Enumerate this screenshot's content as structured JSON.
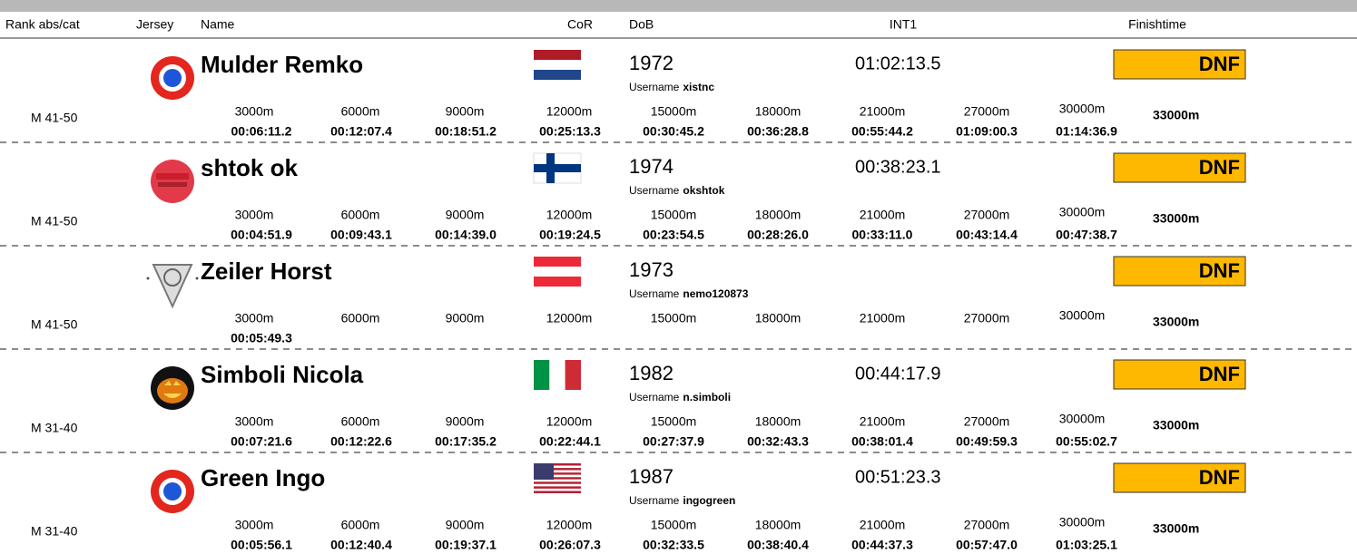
{
  "header": {
    "columns": [
      "Rank abs/cat",
      "Jersey",
      "Name",
      "CoR",
      "DoB",
      "INT1",
      "Finishtime"
    ]
  },
  "username_label": "Username",
  "split_distances": [
    "3000m",
    "6000m",
    "9000m",
    "12000m",
    "15000m",
    "18000m",
    "21000m",
    "27000m",
    "30000m",
    "33000m"
  ],
  "rows": [
    {
      "category": "M 41-50",
      "name": "Mulder Remko",
      "dob": "1972",
      "username": "xistnc",
      "int1": "01:02:13.5",
      "finish": "DNF",
      "splits": [
        "00:06:11.2",
        "00:12:07.4",
        "00:18:51.2",
        "00:25:13.3",
        "00:30:45.2",
        "00:36:28.8",
        "00:55:44.2",
        "01:09:00.3",
        "01:14:36.9"
      ]
    },
    {
      "category": "M 41-50",
      "name": "shtok ok",
      "dob": "1974",
      "username": "okshtok",
      "int1": "00:38:23.1",
      "finish": "DNF",
      "splits": [
        "00:04:51.9",
        "00:09:43.1",
        "00:14:39.0",
        "00:19:24.5",
        "00:23:54.5",
        "00:28:26.0",
        "00:33:11.0",
        "00:43:14.4",
        "00:47:38.7"
      ]
    },
    {
      "category": "M 41-50",
      "name": "Zeiler Horst",
      "dob": "1973",
      "username": "nemo120873",
      "finish": "DNF",
      "splits": [
        "00:05:49.3"
      ]
    },
    {
      "category": "M 31-40",
      "name": "Simboli Nicola",
      "dob": "1982",
      "username": "n.simboli",
      "int1": "00:44:17.9",
      "finish": "DNF",
      "splits": [
        "00:07:21.6",
        "00:12:22.6",
        "00:17:35.2",
        "00:22:44.1",
        "00:27:37.9",
        "00:32:43.3",
        "00:38:01.4",
        "00:49:59.3",
        "00:55:02.7"
      ]
    },
    {
      "category": "M 31-40",
      "name": "Green Ingo",
      "dob": "1987",
      "username": "ingogreen",
      "int1": "00:51:23.3",
      "finish": "DNF",
      "splits": [
        "00:05:56.1",
        "00:12:40.4",
        "00:19:37.1",
        "00:26:07.3",
        "00:32:33.5",
        "00:38:40.4",
        "00:44:37.3",
        "00:57:47.0",
        "01:03:25.1"
      ]
    }
  ]
}
